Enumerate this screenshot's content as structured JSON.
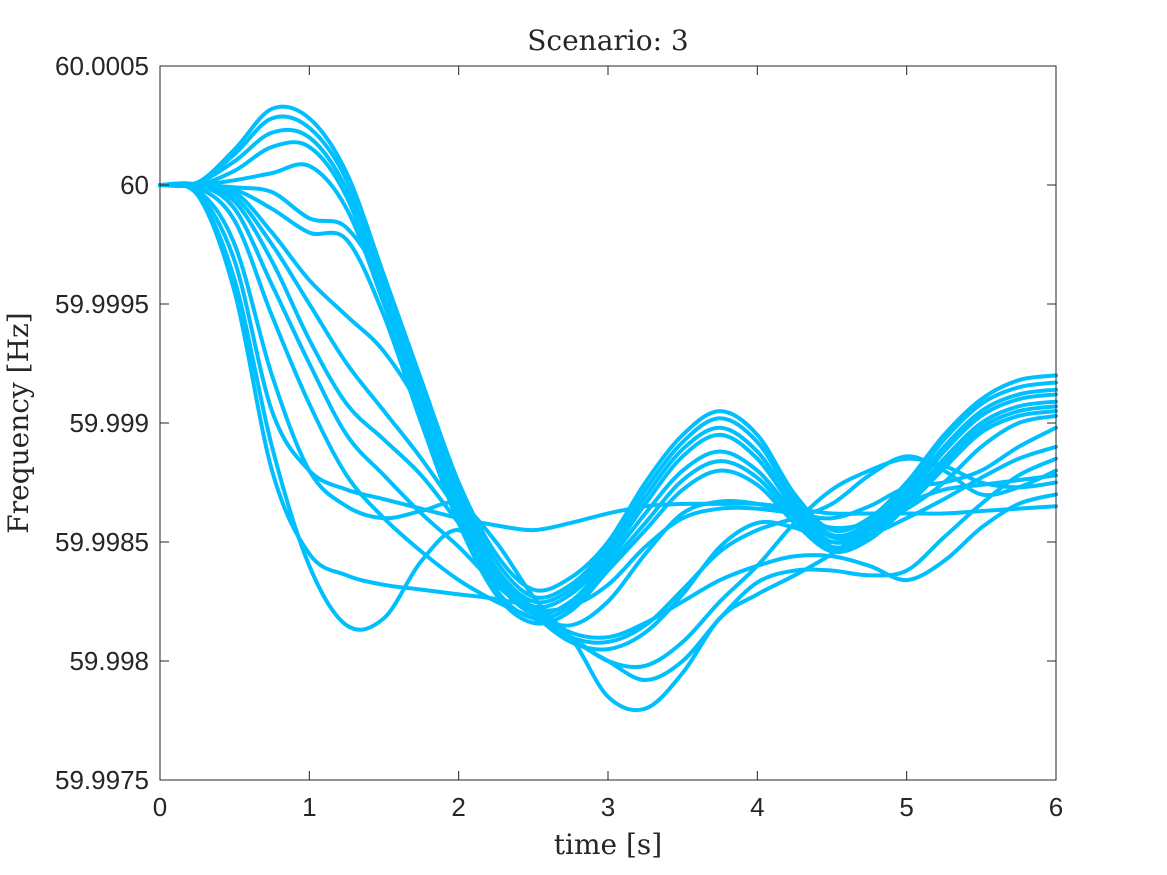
{
  "chart_data": {
    "type": "line",
    "title": "Scenario: 3",
    "xlabel": "time [s]",
    "ylabel": "Frequency [Hz]",
    "xlim": [
      0,
      6
    ],
    "ylim": [
      59.9975,
      60.0005
    ],
    "xticks": [
      0,
      1,
      2,
      3,
      4,
      5,
      6
    ],
    "xtick_labels": [
      "0",
      "1",
      "2",
      "3",
      "4",
      "5",
      "6"
    ],
    "yticks": [
      59.9975,
      59.998,
      59.9985,
      59.999,
      59.9995,
      60,
      60.0005
    ],
    "ytick_labels": [
      "59.9975",
      "59.998",
      "59.9985",
      "59.999",
      "59.9995",
      "60",
      "60.0005"
    ],
    "grid": false,
    "line_color": "#00BFFF",
    "x": [
      0,
      0.25,
      0.5,
      0.75,
      1.0,
      1.25,
      1.5,
      1.75,
      2.0,
      2.25,
      2.5,
      2.75,
      3.0,
      3.25,
      3.5,
      3.75,
      4.0,
      4.25,
      4.5,
      4.75,
      5.0,
      5.25,
      5.5,
      5.75,
      6.0
    ],
    "series": [
      {
        "values": [
          60.0,
          60.00001,
          60.00015,
          60.00032,
          60.00028,
          60.00005,
          59.99962,
          59.99918,
          59.99875,
          59.99845,
          59.9983,
          59.99835,
          59.9985,
          59.99875,
          59.99895,
          59.99905,
          59.99895,
          59.9987,
          59.99855,
          59.9986,
          59.99875,
          59.99895,
          59.9991,
          59.99918,
          59.9992
        ]
      },
      {
        "values": [
          60.0,
          60.00001,
          60.00013,
          60.00028,
          60.00024,
          60.00002,
          59.99958,
          59.99914,
          59.99872,
          59.99842,
          59.99827,
          59.99832,
          59.99848,
          59.99872,
          59.99892,
          59.99902,
          59.99892,
          59.99868,
          59.99853,
          59.99858,
          59.99873,
          59.99893,
          59.99908,
          59.99915,
          59.99917
        ]
      },
      {
        "values": [
          60.0,
          60.00001,
          60.0001,
          60.00022,
          60.0002,
          59.99998,
          59.99955,
          59.99911,
          59.99869,
          59.99839,
          59.99825,
          59.9983,
          59.99846,
          59.99869,
          59.99889,
          59.99898,
          59.99888,
          59.99866,
          59.99852,
          59.99856,
          59.99871,
          59.9989,
          59.99905,
          59.99912,
          59.99914
        ]
      },
      {
        "values": [
          60.0,
          60.0,
          60.00006,
          60.00016,
          60.00016,
          59.99995,
          59.99952,
          59.99908,
          59.99866,
          59.99837,
          59.99823,
          59.99828,
          59.99844,
          59.99866,
          59.99886,
          59.99895,
          59.99885,
          59.99864,
          59.9985,
          59.99855,
          59.99869,
          59.99888,
          59.99903,
          59.9991,
          59.99912
        ]
      },
      {
        "values": [
          60.0,
          60.0,
          60.00002,
          60.00005,
          60.00008,
          59.9999,
          59.9995,
          59.99905,
          59.99863,
          59.99834,
          59.9982,
          59.99825,
          59.99842,
          59.99862,
          59.9988,
          59.99888,
          59.9988,
          59.99862,
          59.99848,
          59.99853,
          59.99867,
          59.99885,
          59.999,
          59.99907,
          59.99909
        ]
      },
      {
        "values": [
          60.0,
          60.0,
          59.99999,
          59.99997,
          59.99986,
          59.99982,
          59.99956,
          59.99904,
          59.9986,
          59.9983,
          59.99818,
          59.99823,
          59.9984,
          59.99858,
          59.99876,
          59.99884,
          59.99877,
          59.9986,
          59.99847,
          59.99852,
          59.99866,
          59.99883,
          59.99898,
          59.99905,
          59.99907
        ]
      },
      {
        "values": [
          60.0,
          60.0,
          59.99998,
          59.9999,
          59.9998,
          59.99977,
          59.99945,
          59.999,
          59.99858,
          59.99828,
          59.99816,
          59.99821,
          59.99838,
          59.99855,
          59.99872,
          59.9988,
          59.99874,
          59.99858,
          59.99846,
          59.99851,
          59.99865,
          59.99881,
          59.99896,
          59.99903,
          59.99905
        ]
      },
      {
        "values": [
          60.0,
          60.0,
          59.99997,
          59.9998,
          59.9996,
          59.99945,
          59.9993,
          59.99905,
          59.99865,
          59.99835,
          59.9982,
          59.99815,
          59.99825,
          59.99845,
          59.99862,
          59.99867,
          59.99866,
          59.99862,
          59.99856,
          59.99858,
          59.99864,
          59.99875,
          59.9989,
          59.999,
          59.99903
        ]
      },
      {
        "values": [
          60.0,
          60.0,
          59.99995,
          59.99975,
          59.9995,
          59.99925,
          59.99905,
          59.99885,
          59.99862,
          59.99833,
          59.99822,
          59.99823,
          59.99832,
          59.99848,
          59.9986,
          59.99864,
          59.99864,
          59.99862,
          59.9986,
          59.99865,
          59.99873,
          59.99875,
          59.9988,
          59.9989,
          59.99898
        ]
      },
      {
        "values": [
          60.0,
          60.0,
          59.99993,
          59.99968,
          59.99935,
          59.99908,
          59.99893,
          59.99878,
          59.99858,
          59.99838,
          59.9982,
          59.99808,
          59.99805,
          59.99812,
          59.99828,
          59.99848,
          59.99858,
          59.99856,
          59.9985,
          59.99853,
          59.9986,
          59.99868,
          59.99877,
          59.99885,
          59.9989
        ]
      },
      {
        "values": [
          60.0,
          60.0,
          59.9999,
          59.99958,
          59.99925,
          59.99895,
          59.99878,
          59.99862,
          59.99848,
          59.99832,
          59.9982,
          59.9981,
          59.99808,
          59.99815,
          59.9983,
          59.99846,
          59.99855,
          59.9986,
          59.99866,
          59.99878,
          59.99886,
          59.9988,
          59.9987,
          59.99873,
          59.9988
        ]
      },
      {
        "values": [
          60.0,
          59.99999,
          59.99985,
          59.99945,
          59.99908,
          59.99878,
          59.9986,
          59.99846,
          59.99834,
          59.99825,
          59.99818,
          59.9981,
          59.998,
          59.99798,
          59.99808,
          59.99825,
          59.9984,
          59.99858,
          59.99872,
          59.9988,
          59.99885,
          59.99882,
          59.99875,
          59.99873,
          59.99875
        ]
      },
      {
        "values": [
          60.0,
          59.99998,
          59.99975,
          59.9992,
          59.9988,
          59.99865,
          59.9986,
          59.99863,
          59.99866,
          59.9985,
          59.99827,
          59.9981,
          59.998,
          59.99792,
          59.998,
          59.99818,
          59.99833,
          59.99838,
          59.99838,
          59.99836,
          59.99838,
          59.99852,
          59.99866,
          59.99878,
          59.99885
        ]
      },
      {
        "values": [
          60.0,
          59.99997,
          59.99968,
          59.99905,
          59.9988,
          59.99872,
          59.99868,
          59.99864,
          59.9986,
          59.99857,
          59.99855,
          59.99858,
          59.99862,
          59.99865,
          59.99866,
          59.99866,
          59.99866,
          59.99864,
          59.99862,
          59.99862,
          59.99862,
          59.99862,
          59.99863,
          59.99864,
          59.99865
        ]
      },
      {
        "values": [
          60.0,
          59.99996,
          59.9996,
          59.9989,
          59.9984,
          59.99815,
          59.99818,
          59.99842,
          59.99855,
          59.99838,
          59.99822,
          59.99812,
          59.9981,
          59.99816,
          59.99825,
          59.99834,
          59.9984,
          59.99844,
          59.99844,
          59.9984,
          59.99834,
          59.99842,
          59.99856,
          59.99866,
          59.9987
        ]
      },
      {
        "values": [
          60.0,
          59.99996,
          59.99955,
          59.9988,
          59.99845,
          59.99836,
          59.99832,
          59.9983,
          59.99828,
          59.99826,
          59.99822,
          59.9981,
          59.99785,
          59.9978,
          59.99795,
          59.99818,
          59.99828,
          59.99836,
          59.99845,
          59.99856,
          59.99866,
          59.99872,
          59.99874,
          59.99876,
          59.99878
        ]
      }
    ]
  }
}
